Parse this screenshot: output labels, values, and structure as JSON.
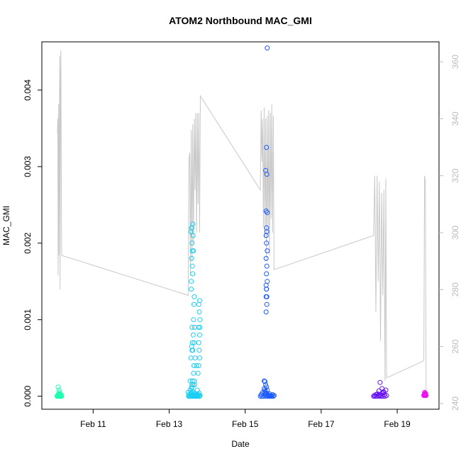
{
  "chart_data": {
    "type": "scatter",
    "title": "ATOM2 Northbound MAC_GMI",
    "xlabel": "Date",
    "ylabel": "MAC_GMI",
    "x_ticks": [
      "Feb 11",
      "Feb 13",
      "Feb 15",
      "Feb 17",
      "Feb 19"
    ],
    "x_tick_days": [
      11,
      13,
      15,
      17,
      19
    ],
    "xlim_days": [
      9.65,
      20.1
    ],
    "y_ticks": [
      "0.000",
      "0.001",
      "0.002",
      "0.003",
      "0.004"
    ],
    "y_tick_values": [
      0,
      0.001,
      0.002,
      0.003,
      0.004
    ],
    "ylim": [
      -0.00017,
      0.00463
    ],
    "y2_ticks": [
      "240",
      "260",
      "280",
      "300",
      "320",
      "340",
      "360"
    ],
    "y2_tick_values": [
      240,
      260,
      280,
      300,
      320,
      340,
      360
    ],
    "y2lim": [
      238,
      367
    ],
    "grid": false,
    "line_color": "#c8c8c8",
    "secondary_axis_color": "#bbbbbb",
    "line_series": {
      "axis": "right",
      "x": [
        10.06,
        10.07,
        10.08,
        10.09,
        10.1,
        10.12,
        10.13,
        10.14,
        10.15,
        10.17,
        10.18,
        13.5,
        13.52,
        13.54,
        13.56,
        13.58,
        13.6,
        13.62,
        13.64,
        13.66,
        13.68,
        13.7,
        13.72,
        13.74,
        13.76,
        13.78,
        13.8,
        13.82,
        15.4,
        15.42,
        15.44,
        15.46,
        15.48,
        15.5,
        15.52,
        15.54,
        15.56,
        15.58,
        15.6,
        15.62,
        15.64,
        15.66,
        15.68,
        15.7,
        15.72,
        15.74,
        15.76,
        18.38,
        18.41,
        18.44,
        18.47,
        18.5,
        18.53,
        18.56,
        18.59,
        18.62,
        18.65,
        18.68,
        18.7,
        18.72,
        19.7,
        19.72,
        19.74,
        19.76
      ],
      "y": [
        335,
        340,
        285,
        345,
        292,
        362,
        280,
        352,
        364,
        293,
        292,
        278,
        326,
        328,
        285,
        336,
        290,
        338,
        296,
        340,
        315,
        342,
        300,
        342,
        310,
        342,
        300,
        348,
        315,
        343,
        325,
        340,
        302,
        344,
        298,
        340,
        290,
        341,
        300,
        343,
        292,
        342,
        305,
        345,
        300,
        341,
        287,
        299,
        320,
        272,
        320,
        283,
        318,
        262,
        314,
        278,
        315,
        248,
        319,
        249,
        255,
        320,
        318,
        243
      ]
    },
    "series": [
      {
        "color": "#19ffb0",
        "x": [
          10.05,
          10.06,
          10.07,
          10.08,
          10.09,
          10.1,
          10.11,
          10.12,
          10.13,
          10.14,
          10.15,
          10.16,
          10.17,
          10.08,
          10.1,
          10.12,
          10.09
        ],
        "y": [
          0,
          1e-05,
          0,
          2e-05,
          0,
          1e-05,
          0,
          3e-05,
          0,
          1e-05,
          0,
          2e-05,
          0,
          0.00012,
          8e-05,
          5e-05,
          3e-05
        ]
      },
      {
        "color": "#1ccef2",
        "x": [
          13.5,
          13.51,
          13.52,
          13.53,
          13.54,
          13.55,
          13.56,
          13.57,
          13.58,
          13.59,
          13.6,
          13.61,
          13.62,
          13.63,
          13.64,
          13.65,
          13.66,
          13.67,
          13.68,
          13.69,
          13.7,
          13.71,
          13.72,
          13.73,
          13.74,
          13.75,
          13.76,
          13.77,
          13.78,
          13.79,
          13.8,
          13.81,
          13.55,
          13.57,
          13.6,
          13.58,
          13.62,
          13.59,
          13.61,
          13.6,
          13.63,
          13.6,
          13.59,
          13.62,
          13.57,
          13.64,
          13.61,
          13.58,
          13.66,
          13.65,
          13.64,
          13.67,
          13.63,
          13.66,
          13.62,
          13.68,
          13.65,
          13.64,
          13.66,
          13.63,
          13.72,
          13.78,
          13.8,
          13.79,
          13.81,
          13.77,
          13.8,
          13.78,
          13.79,
          13.8,
          13.81,
          13.78,
          13.76,
          13.58,
          13.59,
          13.6,
          13.61,
          13.6,
          13.61,
          13.59
        ],
        "y": [
          5e-05,
          0,
          2e-05,
          0,
          1e-05,
          8e-05,
          0,
          3e-05,
          0,
          0.00012,
          1e-05,
          0,
          6e-05,
          0,
          2e-05,
          4e-05,
          0,
          0.00015,
          0,
          1e-05,
          3e-05,
          0,
          2e-05,
          0,
          8e-05,
          0,
          1e-05,
          2e-05,
          0,
          4e-05,
          0,
          1e-05,
          0.0002,
          0.0005,
          0.0009,
          0.0014,
          0.0016,
          0.0018,
          0.0019,
          0.002,
          0.0021,
          0.0022,
          0.0022,
          0.00225,
          0.00215,
          0.0019,
          0.0017,
          0.0015,
          0.0013,
          0.0012,
          0.001,
          0.0009,
          0.0008,
          0.0007,
          0.0006,
          0.0005,
          0.0004,
          0.0003,
          0.0002,
          0.00015,
          0.0004,
          0.0012,
          0.00125,
          0.0011,
          0.001,
          0.0009,
          0.0008,
          0.0007,
          0.0006,
          0.0005,
          0.0009,
          0.0004,
          0.0003,
          5e-05,
          0.0001,
          0.00015,
          0.0002,
          0.0006,
          0.0007,
          0.00065
        ]
      },
      {
        "color": "#1a5aff",
        "x": [
          15.4,
          15.42,
          15.44,
          15.46,
          15.48,
          15.5,
          15.52,
          15.54,
          15.56,
          15.58,
          15.6,
          15.62,
          15.64,
          15.66,
          15.68,
          15.7,
          15.72,
          15.74,
          15.76,
          15.5,
          15.52,
          15.54,
          15.56,
          15.58,
          15.55,
          15.57,
          15.56,
          15.55,
          15.58,
          15.56,
          15.57,
          15.55,
          15.58,
          15.56,
          15.55,
          15.57,
          15.56,
          15.58,
          15.55,
          15.57,
          15.54,
          15.56,
          15.58,
          15.57,
          15.55,
          15.56,
          15.5,
          15.52,
          15.53,
          15.54,
          15.6,
          15.62
        ],
        "y": [
          0,
          2e-05,
          0,
          5e-05,
          0,
          0.0001,
          2e-05,
          0,
          4e-05,
          0,
          1e-05,
          0,
          3e-05,
          0,
          1e-05,
          0,
          2e-05,
          0,
          1e-05,
          0.0002,
          0.00019,
          0.00015,
          0.00012,
          8e-05,
          0.0011,
          0.0013,
          0.0014,
          0.00145,
          0.0015,
          0.0016,
          0.0017,
          0.0018,
          0.0019,
          0.002,
          0.0021,
          0.00215,
          0.0022,
          0.0024,
          0.00242,
          0.0029,
          0.00295,
          0.00325,
          0.00455,
          0.0012,
          0.0013,
          0.0014,
          5e-05,
          8e-05,
          6e-05,
          3e-05,
          2e-05,
          1e-05
        ]
      },
      {
        "color": "#6612f5",
        "x": [
          18.38,
          18.4,
          18.42,
          18.44,
          18.46,
          18.48,
          18.5,
          18.52,
          18.54,
          18.56,
          18.58,
          18.6,
          18.62,
          18.64,
          18.66,
          18.68,
          18.7,
          18.72,
          18.55,
          18.6,
          18.65,
          18.52
        ],
        "y": [
          0,
          1e-05,
          0,
          2e-05,
          0,
          3e-05,
          1e-05,
          0,
          2e-05,
          1e-05,
          0,
          4e-05,
          0,
          6e-05,
          2e-05,
          0,
          8e-05,
          1e-05,
          0.00018,
          0.0001,
          5e-05,
          7e-05
        ]
      },
      {
        "color": "#ee11ee",
        "x": [
          19.7,
          19.71,
          19.72,
          19.73,
          19.74,
          19.75,
          19.76,
          19.72,
          19.74,
          19.73
        ],
        "y": [
          1e-05,
          2e-05,
          3e-05,
          1e-05,
          4e-05,
          2e-05,
          1e-05,
          5e-05,
          3e-05,
          2e-05
        ]
      }
    ]
  }
}
